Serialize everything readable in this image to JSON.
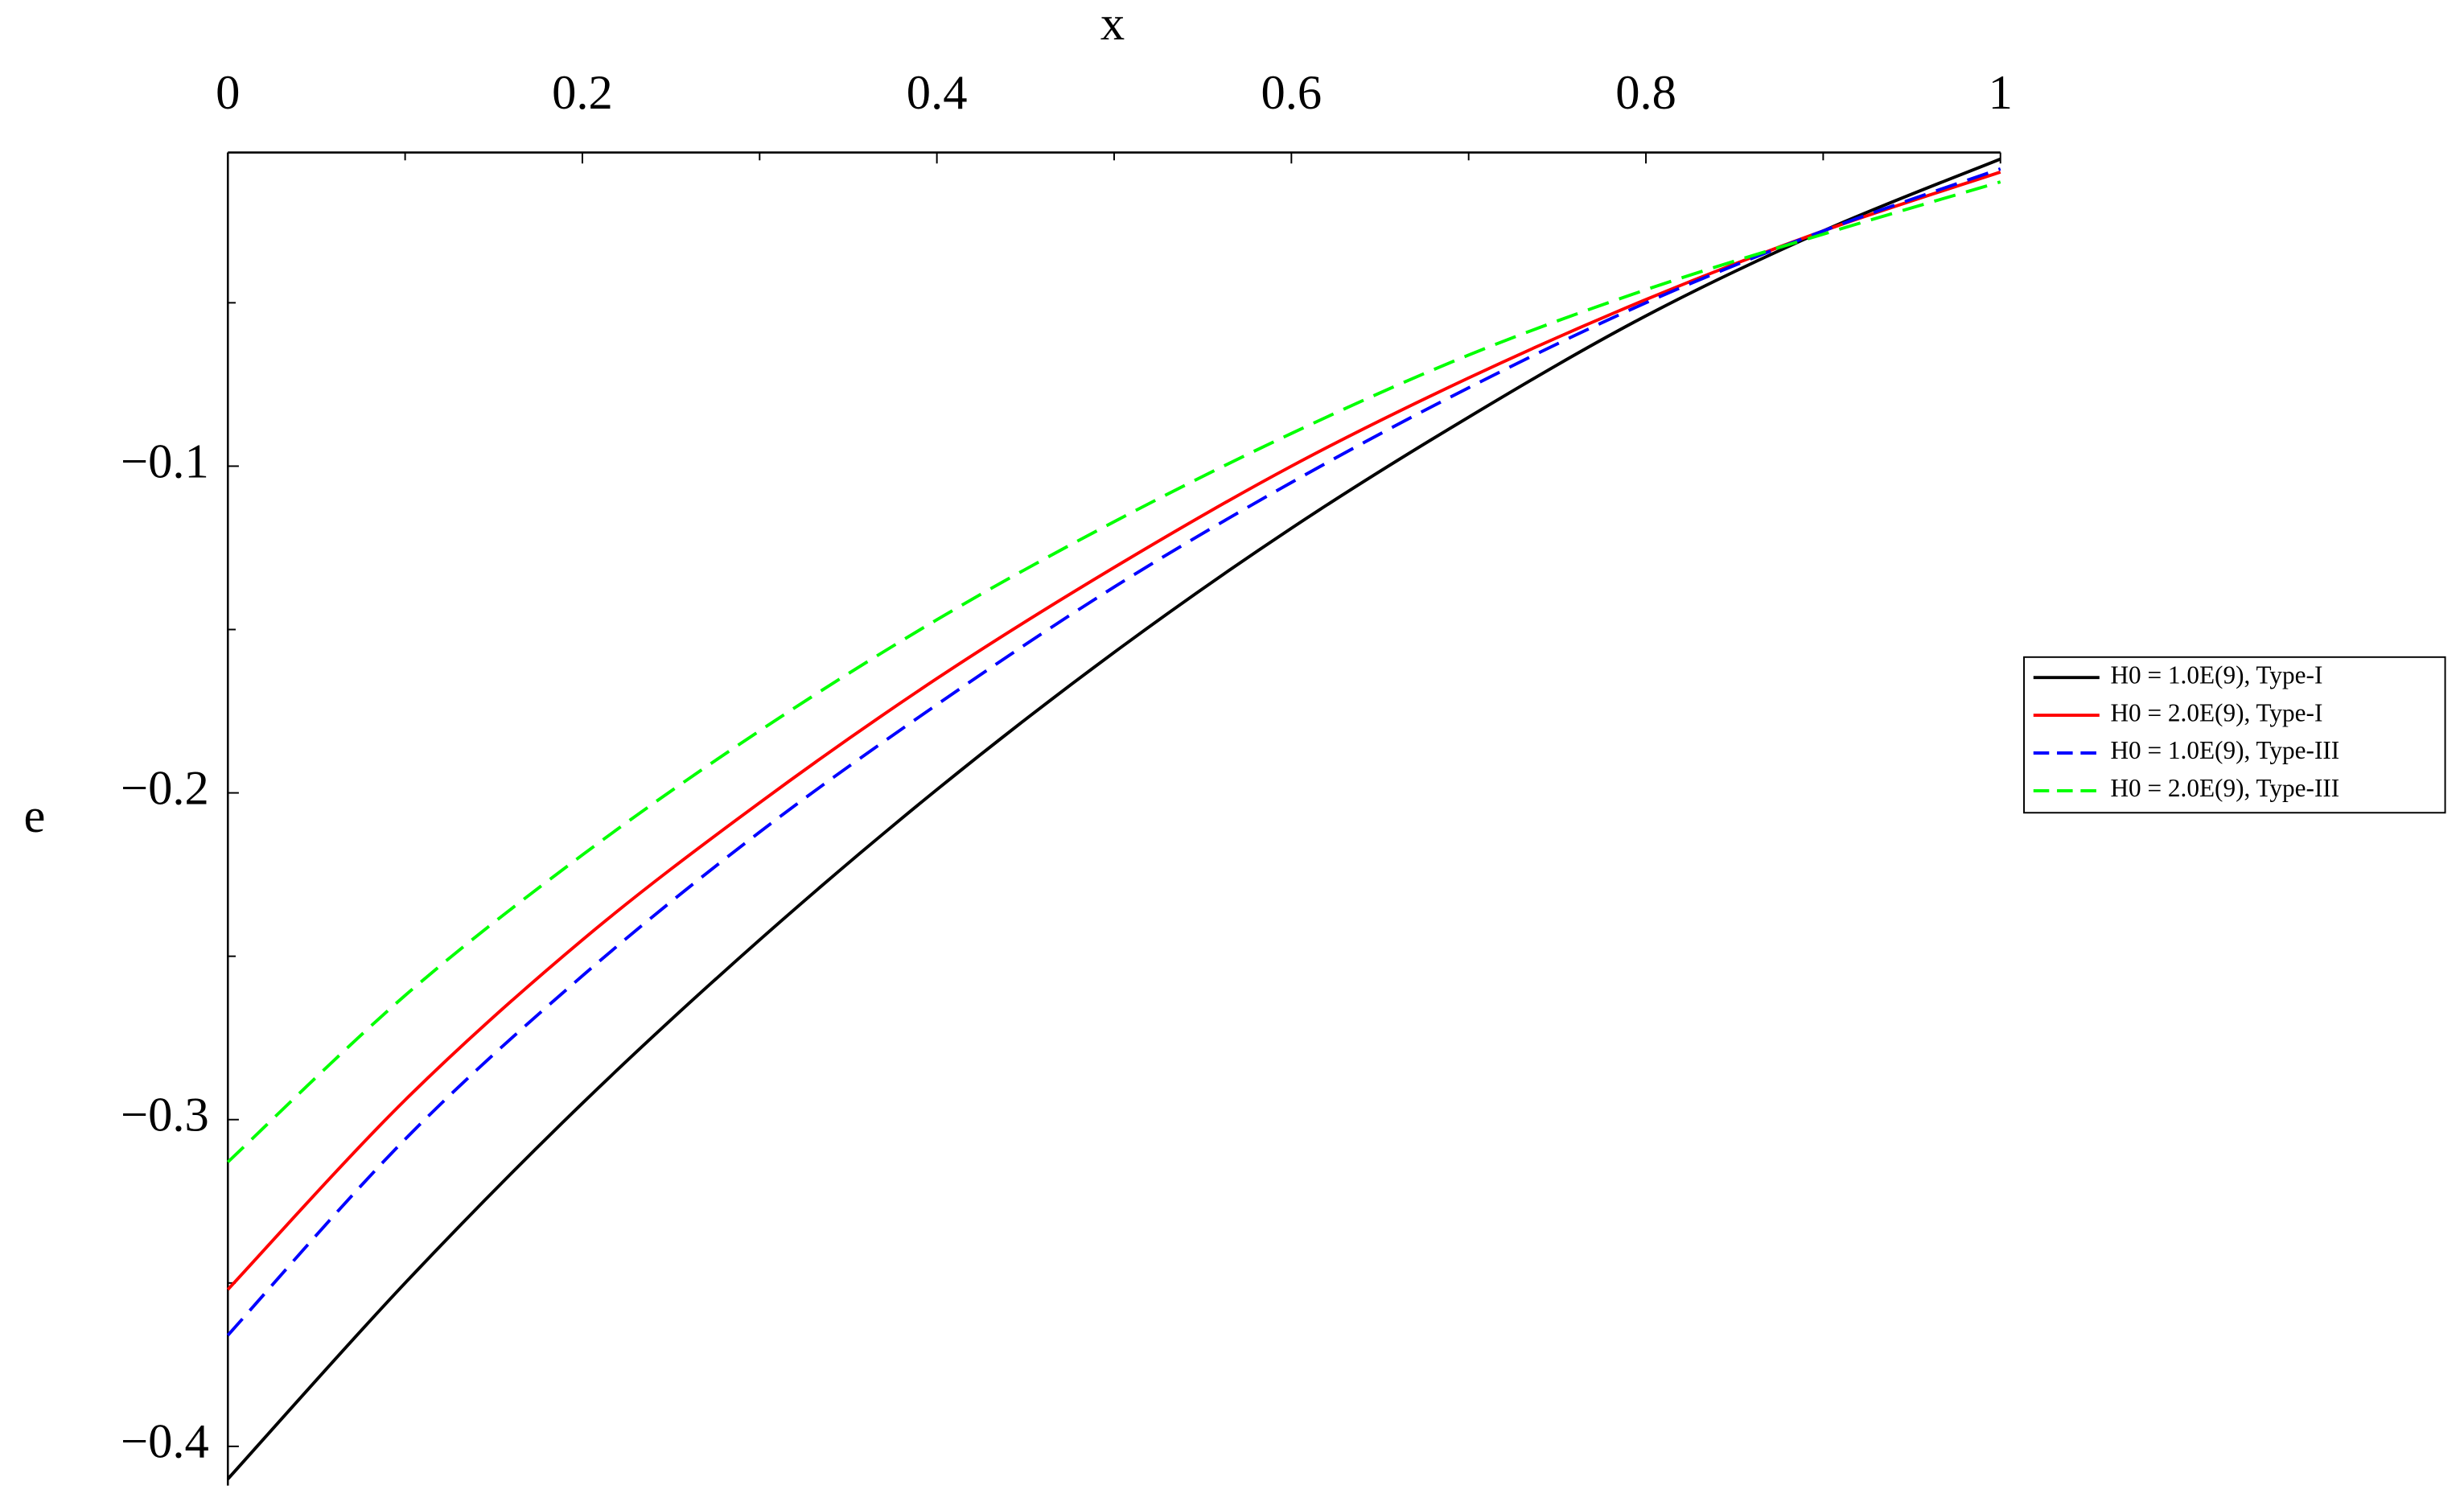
{
  "chart_data": {
    "type": "line",
    "x_label": "x",
    "y_label": "e",
    "x": [
      0,
      0.1,
      0.2,
      0.3,
      0.4,
      0.5,
      0.6,
      0.7,
      0.8,
      0.9,
      1
    ],
    "series": [
      {
        "name": "H0 = 1.0E(9), Type-I",
        "color": "#000000",
        "dashed": false,
        "values": [
          -0.41,
          -0.35,
          -0.295,
          -0.245,
          -0.199,
          -0.157,
          -0.119,
          -0.085,
          -0.054,
          -0.028,
          -0.006
        ]
      },
      {
        "name": "H0 = 2.0E(9), Type-I",
        "color": "#ff0000",
        "dashed": false,
        "values": [
          -0.352,
          -0.294,
          -0.245,
          -0.203,
          -0.165,
          -0.131,
          -0.1,
          -0.073,
          -0.049,
          -0.028,
          -0.01
        ]
      },
      {
        "name": "H0 = 1.0E(9), Type-III",
        "color": "#0000ff",
        "dashed": true,
        "values": [
          -0.366,
          -0.306,
          -0.256,
          -0.212,
          -0.173,
          -0.137,
          -0.105,
          -0.076,
          -0.05,
          -0.028,
          -0.009
        ]
      },
      {
        "name": "H0 = 2.0E(9), Type-III",
        "color": "#00ff00",
        "dashed": true,
        "values": [
          -0.313,
          -0.262,
          -0.219,
          -0.181,
          -0.147,
          -0.117,
          -0.09,
          -0.066,
          -0.046,
          -0.029,
          -0.013
        ]
      }
    ],
    "xlim": [
      0,
      1
    ],
    "ylim": [
      -0.412,
      -0.004
    ],
    "xticks": [
      0,
      0.2,
      0.4,
      0.6,
      0.8,
      1
    ],
    "xminorticks": [
      0.1,
      0.3,
      0.5,
      0.7,
      0.9
    ],
    "yticks": [
      {
        "value": -0.1,
        "label": "−0.1"
      },
      {
        "value": -0.2,
        "label": "−0.2"
      },
      {
        "value": -0.3,
        "label": "−0.3"
      },
      {
        "value": -0.4,
        "label": "−0.4"
      }
    ],
    "yminorticks": [
      -0.05,
      -0.15,
      -0.25,
      -0.35
    ],
    "x_axis_position": "top",
    "legend": "right"
  }
}
